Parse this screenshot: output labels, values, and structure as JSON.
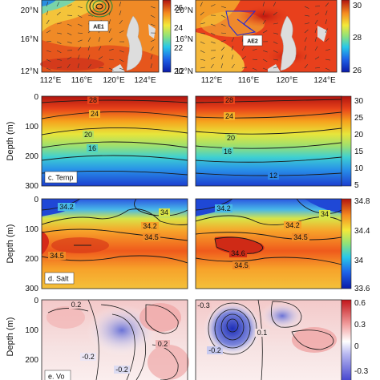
{
  "chart_data": [
    {
      "type": "heatmap",
      "name": "map-sst-left",
      "x_ticks": [
        "112°E",
        "116°E",
        "120°E",
        "124°E"
      ],
      "y_ticks": [
        "20°N",
        "16°N",
        "12°N"
      ],
      "annotation": "AE1",
      "colorbar_ticks": [
        "26",
        "24",
        "22",
        "20"
      ]
    },
    {
      "type": "heatmap",
      "name": "map-sst-right",
      "x_ticks": [
        "112°E",
        "116°E",
        "120°E",
        "124°E"
      ],
      "y_ticks": [
        "20°N",
        "16°N",
        "12°N"
      ],
      "annotation": "AE2",
      "colorbar_ticks": [
        "30",
        "28",
        "26"
      ]
    },
    {
      "type": "heatmap",
      "name": "temp-sections",
      "panel_label": "c. Temp",
      "ylabel": "Depth (m)",
      "y_ticks": [
        "0",
        "100",
        "200",
        "300"
      ],
      "contours_left": [
        "28",
        "24",
        "20",
        "16",
        "12"
      ],
      "contours_right": [
        "28",
        "24",
        "20",
        "16",
        "12"
      ],
      "colorbar_ticks": [
        "30",
        "25",
        "20",
        "15",
        "10",
        "5"
      ]
    },
    {
      "type": "heatmap",
      "name": "salt-sections",
      "panel_label": "d. Salt",
      "ylabel": "Depth (m)",
      "y_ticks": [
        "0",
        "100",
        "200",
        "300"
      ],
      "contours_left": [
        "34.2",
        "34",
        "34.2",
        "34.5",
        "34.5"
      ],
      "contours_right": [
        "34.2",
        "34",
        "34.2",
        "34.5",
        "34.6",
        "34.5"
      ],
      "colorbar_ticks": [
        "34.8",
        "34.4",
        "34",
        "33.6"
      ]
    },
    {
      "type": "heatmap",
      "name": "vo-sections",
      "panel_label": "e. Vo",
      "ylabel": "Depth (m)",
      "y_ticks": [
        "0",
        "100",
        "200"
      ],
      "contours_left": [
        "0.2",
        "-0.2",
        "-0.2",
        "0.2"
      ],
      "contours_right": [
        "-0.3",
        "0.1",
        "-0.2"
      ],
      "colorbar_ticks": [
        "0.6",
        "0.3",
        "0",
        "-0.3"
      ]
    }
  ]
}
